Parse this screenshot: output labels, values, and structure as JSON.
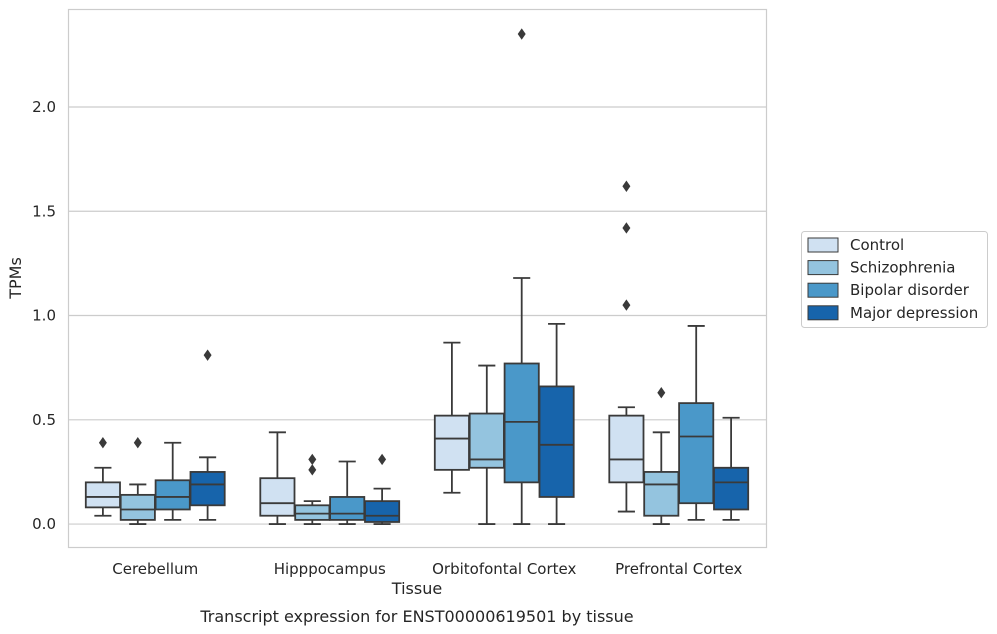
{
  "chart_data": {
    "type": "box",
    "xlabel": "Tissue",
    "ylabel": "TPMs",
    "caption": "Transcript expression for ENST00000619501 by tissue",
    "ylim": [
      -0.11,
      2.47
    ],
    "yticks": [
      0.0,
      0.5,
      1.0,
      1.5,
      2.0
    ],
    "ytick_labels": [
      "0.0",
      "0.5",
      "1.0",
      "1.5",
      "2.0"
    ],
    "grid": "horizontal",
    "legend_position": "right",
    "categories": [
      "Cerebellum",
      "Hipppocampus",
      "Orbitofontal Cortex",
      "Prefrontal Cortex"
    ],
    "series": [
      {
        "name": "Control",
        "color": "#d0e1f2",
        "boxes": [
          {
            "whisker_low": 0.04,
            "q1": 0.08,
            "median": 0.13,
            "q3": 0.2,
            "whisker_high": 0.27,
            "outliers": [
              0.39
            ]
          },
          {
            "whisker_low": 0.0,
            "q1": 0.04,
            "median": 0.1,
            "q3": 0.22,
            "whisker_high": 0.44,
            "outliers": []
          },
          {
            "whisker_low": 0.15,
            "q1": 0.26,
            "median": 0.41,
            "q3": 0.52,
            "whisker_high": 0.87,
            "outliers": []
          },
          {
            "whisker_low": 0.06,
            "q1": 0.2,
            "median": 0.31,
            "q3": 0.52,
            "whisker_high": 0.56,
            "outliers": [
              1.05,
              1.42,
              1.62
            ]
          }
        ]
      },
      {
        "name": "Schizophrenia",
        "color": "#94c4df",
        "boxes": [
          {
            "whisker_low": 0.0,
            "q1": 0.02,
            "median": 0.07,
            "q3": 0.14,
            "whisker_high": 0.19,
            "outliers": [
              0.39
            ]
          },
          {
            "whisker_low": 0.0,
            "q1": 0.02,
            "median": 0.05,
            "q3": 0.09,
            "whisker_high": 0.11,
            "outliers": [
              0.26,
              0.31
            ]
          },
          {
            "whisker_low": 0.0,
            "q1": 0.27,
            "median": 0.31,
            "q3": 0.53,
            "whisker_high": 0.76,
            "outliers": []
          },
          {
            "whisker_low": 0.0,
            "q1": 0.04,
            "median": 0.19,
            "q3": 0.25,
            "whisker_high": 0.44,
            "outliers": [
              0.63
            ]
          }
        ]
      },
      {
        "name": "Bipolar disorder",
        "color": "#4a98c9",
        "boxes": [
          {
            "whisker_low": 0.02,
            "q1": 0.07,
            "median": 0.13,
            "q3": 0.21,
            "whisker_high": 0.39,
            "outliers": []
          },
          {
            "whisker_low": 0.0,
            "q1": 0.02,
            "median": 0.05,
            "q3": 0.13,
            "whisker_high": 0.3,
            "outliers": []
          },
          {
            "whisker_low": 0.0,
            "q1": 0.2,
            "median": 0.49,
            "q3": 0.77,
            "whisker_high": 1.18,
            "outliers": [
              2.35
            ]
          },
          {
            "whisker_low": 0.02,
            "q1": 0.1,
            "median": 0.42,
            "q3": 0.58,
            "whisker_high": 0.95,
            "outliers": []
          }
        ]
      },
      {
        "name": "Major depression",
        "color": "#1764ab",
        "boxes": [
          {
            "whisker_low": 0.02,
            "q1": 0.09,
            "median": 0.19,
            "q3": 0.25,
            "whisker_high": 0.32,
            "outliers": [
              0.81
            ]
          },
          {
            "whisker_low": 0.0,
            "q1": 0.01,
            "median": 0.04,
            "q3": 0.11,
            "whisker_high": 0.17,
            "outliers": [
              0.31
            ]
          },
          {
            "whisker_low": 0.0,
            "q1": 0.13,
            "median": 0.38,
            "q3": 0.66,
            "whisker_high": 0.96,
            "outliers": []
          },
          {
            "whisker_low": 0.02,
            "q1": 0.07,
            "median": 0.2,
            "q3": 0.27,
            "whisker_high": 0.51,
            "outliers": []
          }
        ]
      }
    ]
  }
}
